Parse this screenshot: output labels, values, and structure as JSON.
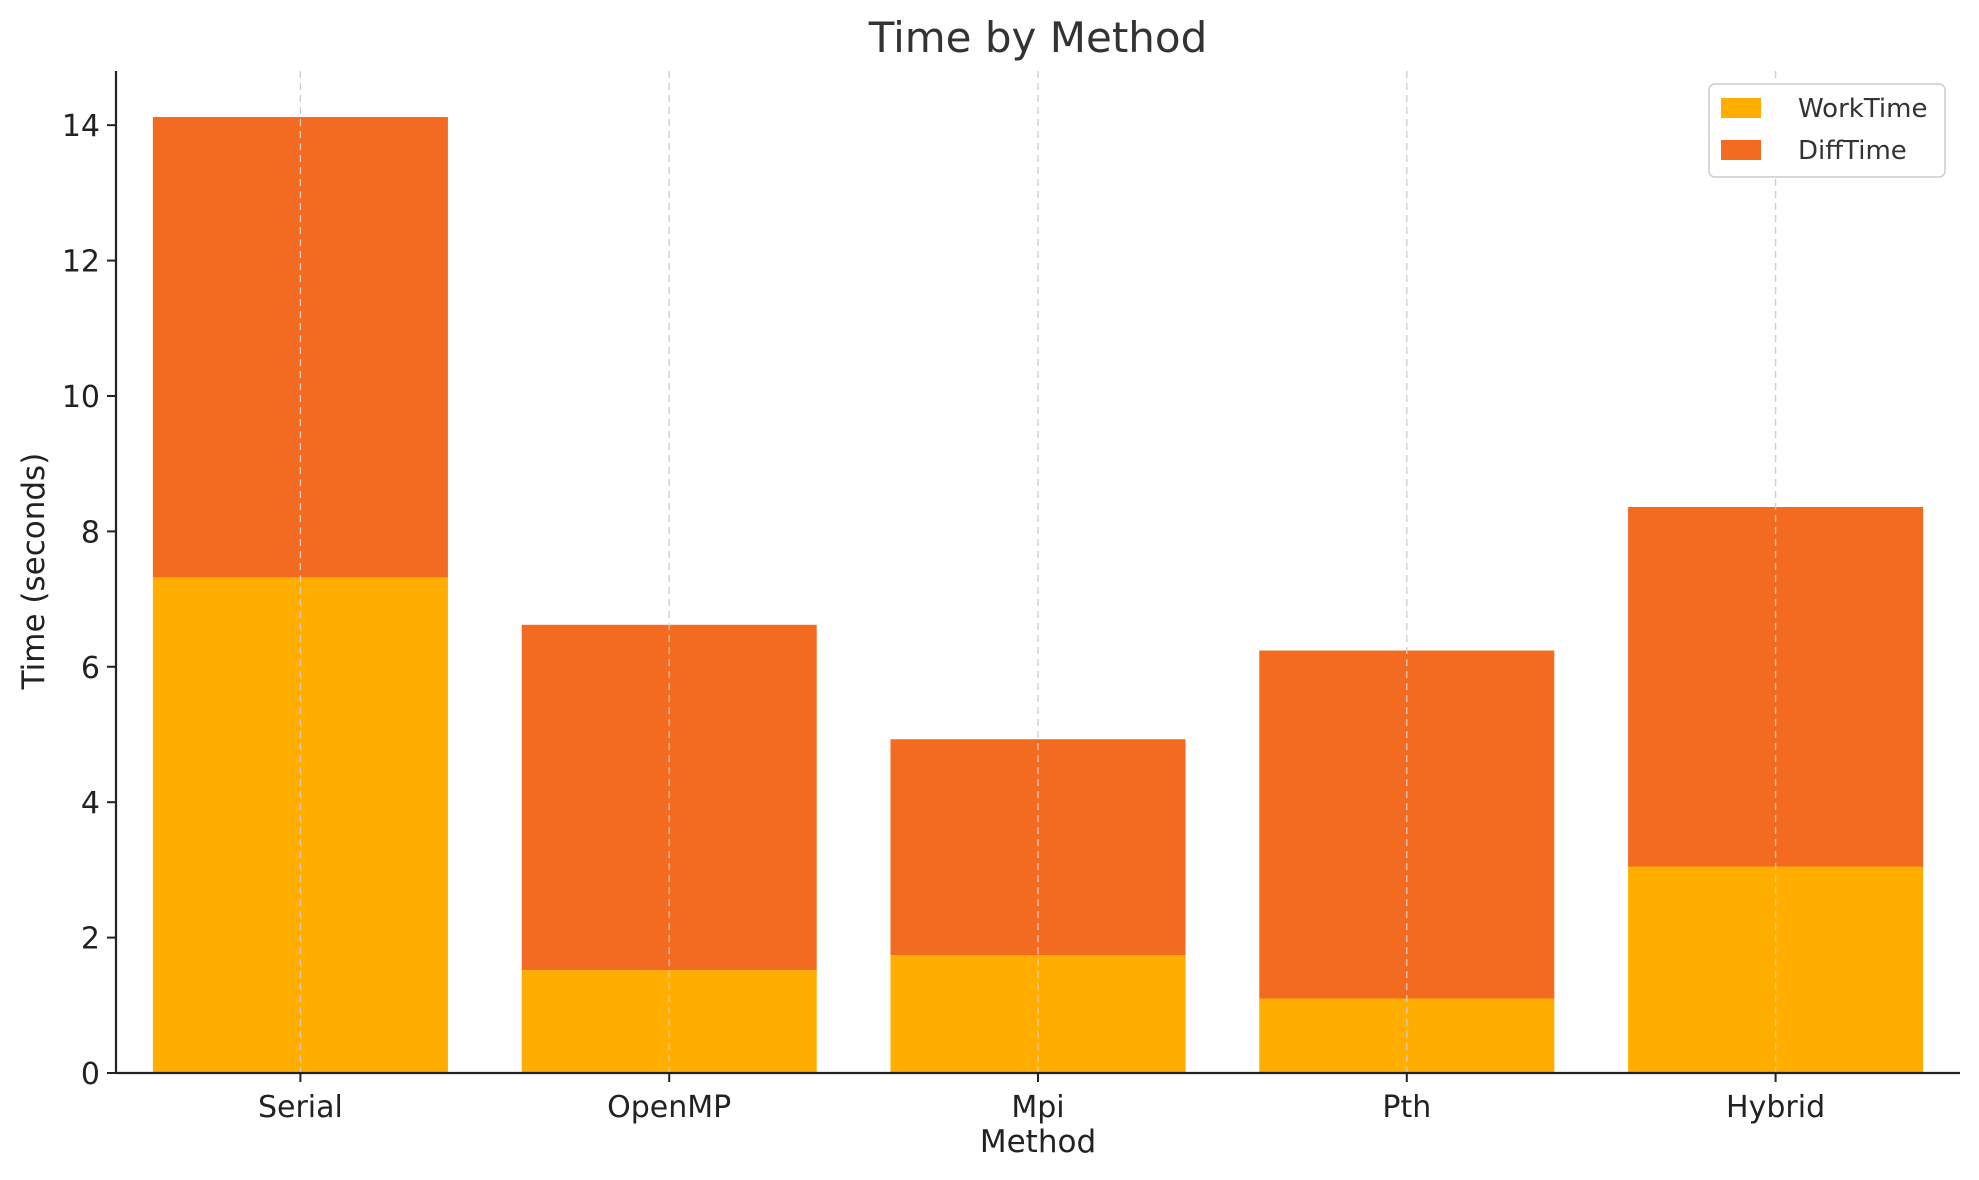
{
  "chart_data": {
    "type": "bar",
    "stacked": true,
    "title": "Time by Method",
    "xlabel": "Method",
    "ylabel": "Time (seconds)",
    "categories": [
      "Serial",
      "OpenMP",
      "Mpi",
      "Pth",
      "Hybrid"
    ],
    "series": [
      {
        "name": "WorkTime",
        "color": "#FFAE00",
        "values": [
          7.32,
          1.52,
          1.74,
          1.1,
          3.05
        ]
      },
      {
        "name": "DiffTime",
        "color": "#F26B21",
        "values": [
          6.8,
          5.1,
          3.19,
          5.14,
          5.31
        ]
      }
    ],
    "ylim": [
      0,
      14.8
    ],
    "yticks": [
      0,
      2,
      4,
      6,
      8,
      10,
      12,
      14
    ],
    "grid": {
      "x": true,
      "y": false
    },
    "legend": "top-right"
  }
}
